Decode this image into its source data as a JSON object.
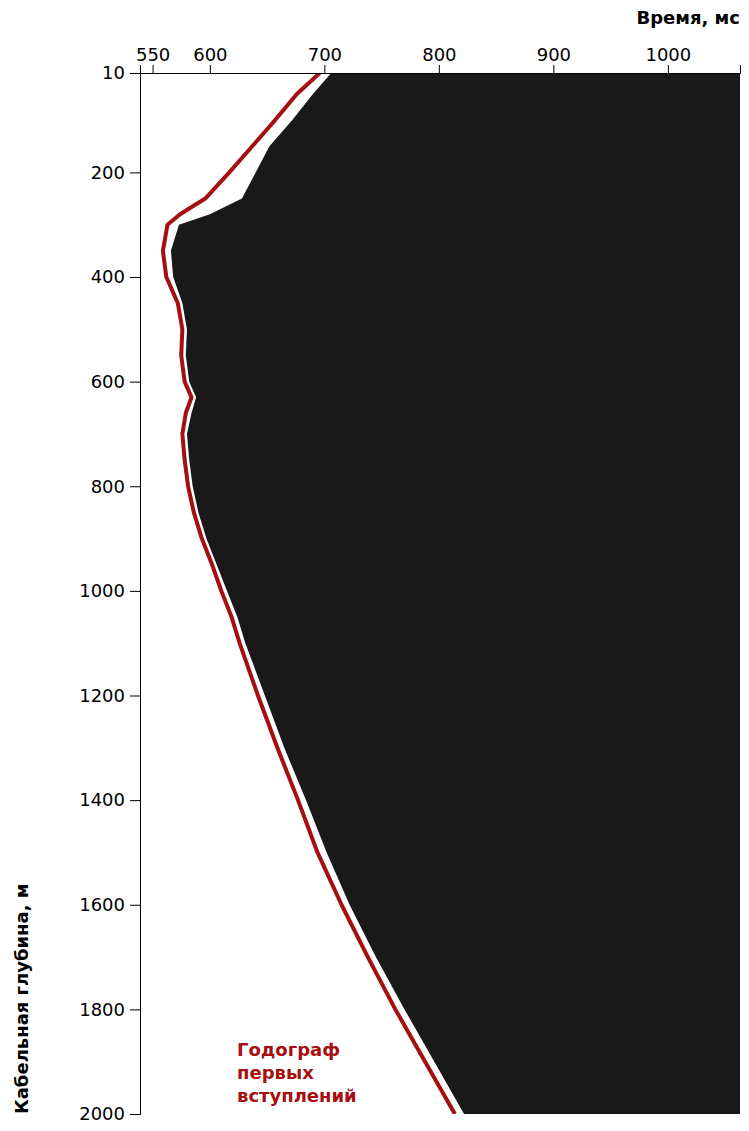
{
  "chart_data": {
    "type": "line",
    "orientation": "horizontal",
    "x_label": "Кабельная глубина, м",
    "y_label": "Время, мс",
    "x": [
      10,
      50,
      100,
      150,
      200,
      250,
      280,
      300,
      350,
      400,
      450,
      500,
      550,
      600,
      630,
      660,
      700,
      750,
      800,
      850,
      900,
      950,
      1000,
      1050,
      1100,
      1200,
      1300,
      1400,
      1500,
      1600,
      1700,
      1800,
      1900,
      2000
    ],
    "xlim": [
      10,
      2000
    ],
    "xticks": [
      10,
      200,
      400,
      600,
      800,
      1000,
      1200,
      1400,
      1600,
      1800,
      2000
    ],
    "ylim": [
      539,
      1063
    ],
    "yticks": [
      550,
      600,
      700,
      800,
      900,
      1000
    ],
    "grid": false,
    "legend": "lower left",
    "series": [
      {
        "name": "Годограф первых вступлений",
        "color": "#a50f0f",
        "type": "line",
        "values": [
          696,
          676,
          657,
          637,
          617,
          596,
          574,
          563,
          559,
          562,
          572,
          576,
          575,
          578,
          584,
          579,
          576,
          578,
          581,
          586,
          593,
          602,
          610,
          619,
          626,
          642,
          659,
          677,
          694,
          715,
          738,
          762,
          788,
          814
        ]
      },
      {
        "color": "#000000",
        "type": "area",
        "values": [
          706,
          690,
          672,
          652,
          640,
          628,
          600,
          573,
          566,
          568,
          576,
          580,
          579,
          582,
          588,
          584,
          580,
          582,
          585,
          590,
          597,
          606,
          615,
          624,
          631,
          648,
          665,
          684,
          702,
          722,
          745,
          770,
          796,
          822
        ]
      }
    ]
  }
}
